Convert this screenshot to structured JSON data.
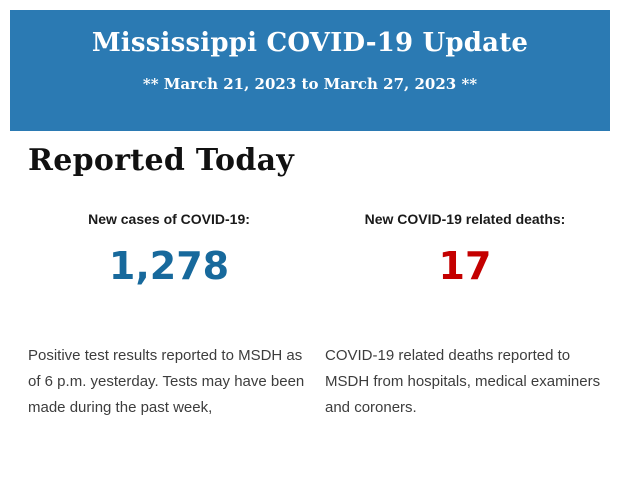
{
  "header": {
    "title": "Mississippi COVID-19 Update",
    "subtitle": "** March 21, 2023 to March 27, 2023 **",
    "background_color": "#2b7ab3",
    "text_color": "#ffffff"
  },
  "section": {
    "heading": "Reported Today"
  },
  "stats": [
    {
      "label": "New cases of COVID-19:",
      "value": "1,278",
      "value_color": "#17699c",
      "description": "Positive test results reported to MSDH as of 6 p.m. yesterday. Tests may have been made during the past week,"
    },
    {
      "label": "New COVID-19 related deaths:",
      "value": "17",
      "value_color": "#c40000",
      "description": "COVID-19 related deaths reported to MSDH from hospitals, medical examiners and coroners."
    }
  ]
}
